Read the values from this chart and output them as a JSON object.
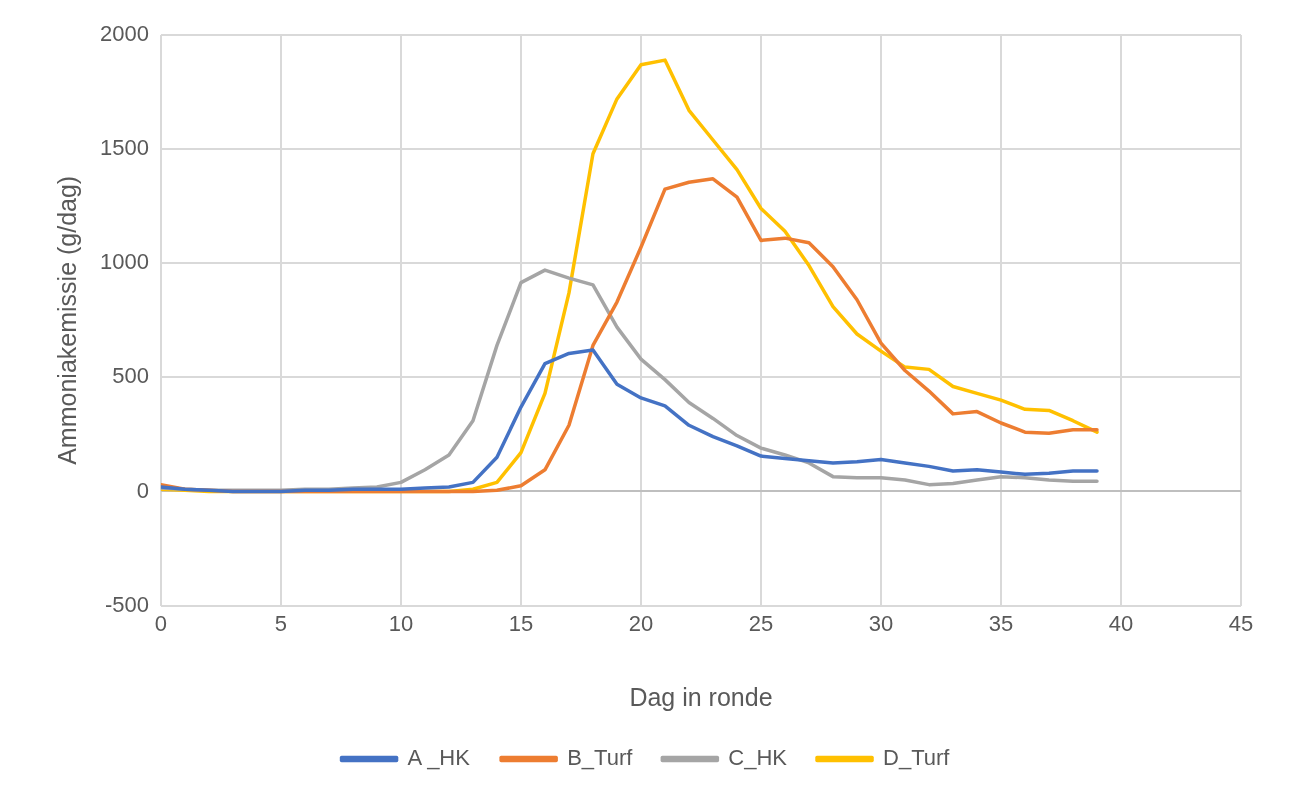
{
  "chart_data": {
    "type": "line",
    "xlabel": "Dag in ronde",
    "ylabel": "Ammoniakemissie (g/dag)",
    "x": [
      0,
      1,
      2,
      3,
      4,
      5,
      6,
      7,
      8,
      9,
      10,
      11,
      12,
      13,
      14,
      15,
      16,
      17,
      18,
      19,
      20,
      21,
      22,
      23,
      24,
      25,
      26,
      27,
      28,
      29,
      30,
      31,
      32,
      33,
      34,
      35,
      36,
      37,
      38,
      39
    ],
    "series": [
      {
        "name": "A _HK",
        "color": "#4472c4",
        "values": [
          20,
          10,
          5,
          0,
          0,
          0,
          5,
          5,
          10,
          10,
          10,
          15,
          20,
          40,
          150,
          370,
          560,
          605,
          620,
          470,
          410,
          375,
          290,
          240,
          200,
          155,
          145,
          135,
          125,
          130,
          140,
          125,
          110,
          90,
          95,
          85,
          75,
          80,
          90,
          90
        ]
      },
      {
        "name": "B_Turf",
        "color": "#ed7d31",
        "values": [
          30,
          10,
          5,
          0,
          0,
          0,
          0,
          0,
          0,
          0,
          0,
          0,
          0,
          0,
          5,
          25,
          95,
          290,
          640,
          830,
          1070,
          1325,
          1355,
          1370,
          1290,
          1100,
          1110,
          1090,
          985,
          840,
          650,
          530,
          440,
          340,
          350,
          300,
          260,
          255,
          270,
          270
        ]
      },
      {
        "name": "C_HK",
        "color": "#a5a5a5",
        "values": [
          15,
          10,
          5,
          5,
          5,
          5,
          10,
          10,
          15,
          20,
          40,
          95,
          160,
          310,
          640,
          915,
          970,
          935,
          905,
          720,
          580,
          490,
          390,
          320,
          245,
          190,
          160,
          125,
          65,
          60,
          60,
          50,
          30,
          35,
          50,
          65,
          60,
          50,
          45,
          45
        ]
      },
      {
        "name": "D_Turf",
        "color": "#ffc000",
        "values": [
          10,
          5,
          0,
          0,
          0,
          0,
          0,
          0,
          0,
          0,
          0,
          0,
          0,
          10,
          40,
          170,
          430,
          870,
          1480,
          1720,
          1870,
          1890,
          1670,
          1540,
          1410,
          1240,
          1140,
          990,
          810,
          690,
          615,
          545,
          535,
          460,
          430,
          400,
          360,
          355,
          310,
          260
        ]
      }
    ],
    "xlim": [
      0,
      45
    ],
    "xticks": [
      0,
      5,
      10,
      15,
      20,
      25,
      30,
      35,
      40,
      45
    ],
    "ylim": [
      -500,
      2000
    ],
    "yticks": [
      -500,
      0,
      500,
      1000,
      1500,
      2000
    ],
    "grid": true,
    "legend": "bottom",
    "marker": "none",
    "line_style": "solid"
  }
}
